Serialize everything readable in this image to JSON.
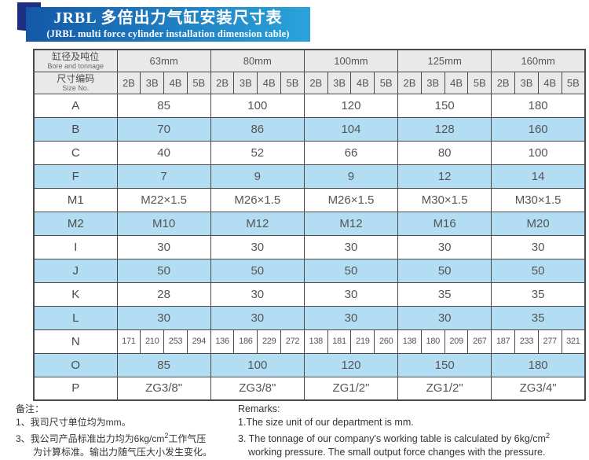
{
  "title": {
    "zh": "JRBL 多倍出力气缸安装尺寸表",
    "en": "(JRBL multi force cylinder installation dimension table)"
  },
  "table": {
    "header": {
      "col1_row1_zh": "缸径及吨位",
      "col1_row1_en": "Bore and tonnage",
      "col1_row2_zh": "尺寸编码",
      "col1_row2_en": "Size No.",
      "bores": [
        "63mm",
        "80mm",
        "100mm",
        "125mm",
        "160mm"
      ],
      "size_codes": [
        "2B",
        "3B",
        "4B",
        "5B"
      ]
    },
    "rows": [
      {
        "label": "A",
        "type": "merged",
        "shade": false,
        "values": [
          "85",
          "100",
          "120",
          "150",
          "180"
        ]
      },
      {
        "label": "B",
        "type": "merged",
        "shade": true,
        "values": [
          "70",
          "86",
          "104",
          "128",
          "160"
        ]
      },
      {
        "label": "C",
        "type": "merged",
        "shade": false,
        "values": [
          "40",
          "52",
          "66",
          "80",
          "100"
        ]
      },
      {
        "label": "F",
        "type": "merged",
        "shade": true,
        "values": [
          "7",
          "9",
          "9",
          "12",
          "14"
        ]
      },
      {
        "label": "M1",
        "type": "merged",
        "shade": false,
        "values": [
          "M22×1.5",
          "M26×1.5",
          "M26×1.5",
          "M30×1.5",
          "M30×1.5"
        ]
      },
      {
        "label": "M2",
        "type": "merged",
        "shade": true,
        "values": [
          "M10",
          "M12",
          "M12",
          "M16",
          "M20"
        ]
      },
      {
        "label": "I",
        "type": "merged",
        "shade": false,
        "values": [
          "30",
          "30",
          "30",
          "30",
          "30"
        ]
      },
      {
        "label": "J",
        "type": "merged",
        "shade": true,
        "values": [
          "50",
          "50",
          "50",
          "50",
          "50"
        ]
      },
      {
        "label": "K",
        "type": "merged",
        "shade": false,
        "values": [
          "28",
          "30",
          "30",
          "35",
          "35"
        ]
      },
      {
        "label": "L",
        "type": "merged",
        "shade": true,
        "values": [
          "30",
          "30",
          "30",
          "30",
          "35"
        ]
      },
      {
        "label": "N",
        "type": "individual",
        "shade": false,
        "values": [
          "171",
          "210",
          "253",
          "294",
          "136",
          "186",
          "229",
          "272",
          "138",
          "181",
          "219",
          "260",
          "138",
          "180",
          "209",
          "267",
          "187",
          "233",
          "277",
          "321"
        ]
      },
      {
        "label": "O",
        "type": "merged",
        "shade": true,
        "values": [
          "85",
          "100",
          "120",
          "150",
          "180"
        ]
      },
      {
        "label": "P",
        "type": "merged",
        "shade": false,
        "values": [
          "ZG3/8\"",
          "ZG3/8\"",
          "ZG1/2\"",
          "ZG1/2\"",
          "ZG3/4\""
        ]
      }
    ]
  },
  "notes": {
    "zh": {
      "heading": "备注：",
      "line1": "1、我司尺寸单位均为mm。",
      "line2_pre": "3、我公司产品标准出力均为6kg/cm",
      "line2_sup": "2",
      "line2_post": "工作气压",
      "line3": "为计算标准。输出力随气压大小发生变化。"
    },
    "en": {
      "heading": "Remarks:",
      "line1": "1.The size unit of our department is mm.",
      "line2_pre": "3. The tonnage of our company's working table is calculated by 6kg/cm",
      "line2_sup": "2",
      "line3": "working pressure. The small output force changes with the pressure."
    }
  },
  "colors": {
    "banner_gradient_left": "#1358a7",
    "banner_gradient_right": "#2ba3da",
    "ribbon": "#1c2f82",
    "header_bg": "#e9e9e9",
    "row_shade": "#b3ddf2",
    "border_color": "#4a4a4a",
    "text_color": "#555555"
  }
}
